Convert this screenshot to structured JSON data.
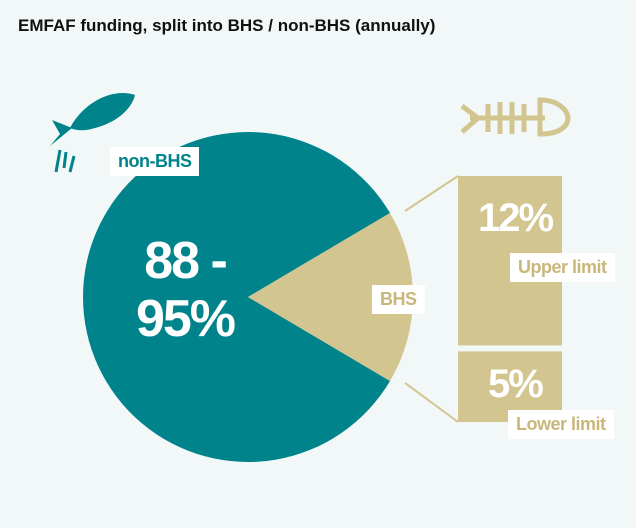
{
  "chart_data": {
    "type": "pie-of-bar",
    "title": "EMFAF funding, split into BHS / non-BHS (annually)",
    "slices": [
      {
        "name": "non-BHS",
        "values": [
          88,
          95
        ],
        "value_label": "88 - 95%",
        "color": "#00838a"
      },
      {
        "name": "BHS",
        "color": "#d3c58f"
      }
    ],
    "bar": {
      "categories": [
        "Upper limit",
        "Lower limit"
      ],
      "values": [
        12,
        5
      ],
      "value_labels": [
        "12%",
        "5%"
      ],
      "color": "#d3c58f"
    }
  }
}
